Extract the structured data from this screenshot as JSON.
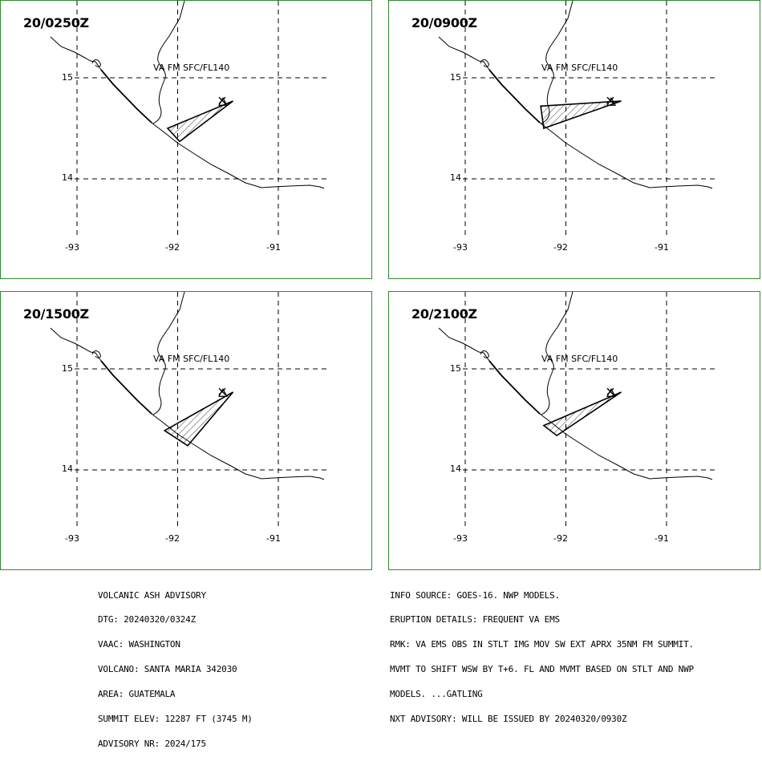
{
  "panels": [
    {
      "time": "20/0250Z",
      "layer": "VA FM SFC/FL140",
      "ash_polygon": [
        [
          -92.1,
          14.5
        ],
        [
          -91.45,
          14.77
        ],
        [
          -91.98,
          14.37
        ]
      ]
    },
    {
      "time": "20/0900Z",
      "layer": "VA FM SFC/FL140",
      "ash_polygon": [
        [
          -92.25,
          14.72
        ],
        [
          -91.45,
          14.77
        ],
        [
          -92.22,
          14.5
        ]
      ]
    },
    {
      "time": "20/1500Z",
      "layer": "VA FM SFC/FL140",
      "ash_polygon": [
        [
          -92.13,
          14.39
        ],
        [
          -91.45,
          14.77
        ],
        [
          -91.9,
          14.24
        ]
      ]
    },
    {
      "time": "20/2100Z",
      "layer": "VA FM SFC/FL140",
      "ash_polygon": [
        [
          -92.22,
          14.44
        ],
        [
          -91.45,
          14.77
        ],
        [
          -92.09,
          14.34
        ]
      ]
    }
  ],
  "axes": {
    "lat_ticks": [
      "15",
      "14"
    ],
    "lon_ticks": [
      "-93",
      "-92",
      "-91"
    ]
  },
  "volcano": {
    "lon": -91.55,
    "lat": 14.76,
    "symbol": "volcano-triangle-icon"
  },
  "colors": {
    "border": "#2e8b2e",
    "lines": "#000000"
  },
  "advisory_left": [
    "VOLCANIC ASH ADVISORY",
    "DTG: 20240320/0324Z",
    "VAAC: WASHINGTON",
    "VOLCANO: SANTA MARIA 342030",
    "AREA: GUATEMALA",
    "SUMMIT ELEV: 12287 FT (3745 M)",
    "ADVISORY NR: 2024/175"
  ],
  "advisory_right": [
    "INFO SOURCE: GOES-16. NWP MODELS.",
    "ERUPTION DETAILS: FREQUENT VA EMS",
    "RMK: VA EMS OBS IN STLT IMG MOV SW EXT APRX 35NM FM SUMMIT.",
    "MVMT TO SHIFT WSW BY T+6. FL AND MVMT BASED ON STLT AND NWP",
    "MODELS. ...GATLING",
    "NXT ADVISORY: WILL BE ISSUED BY 20240320/0930Z"
  ]
}
